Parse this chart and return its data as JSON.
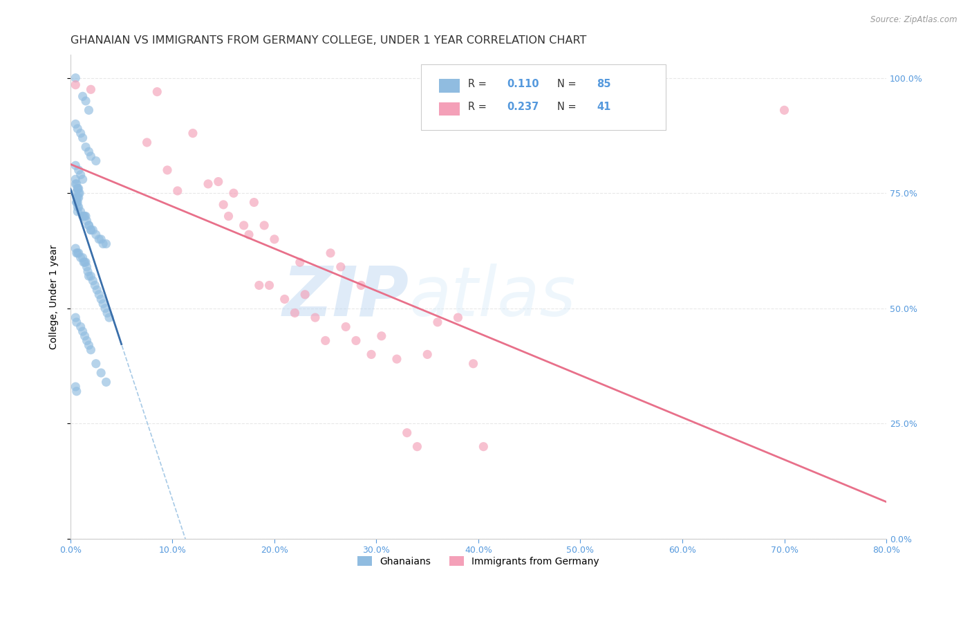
{
  "title": "GHANAIAN VS IMMIGRANTS FROM GERMANY COLLEGE, UNDER 1 YEAR CORRELATION CHART",
  "source": "Source: ZipAtlas.com",
  "xlabel_range": [
    0.0,
    0.8
  ],
  "ylabel_range": [
    0.0,
    1.05
  ],
  "ylabel_label": "College, Under 1 year",
  "watermark_zip": "ZIP",
  "watermark_atlas": "atlas",
  "ghanaian_color": "#90bce0",
  "germany_color": "#f4a0b8",
  "ghanaian_line_color": "#3a6faa",
  "ghanaian_line_dash_color": "#90bce0",
  "germany_line_color": "#e8708a",
  "background_color": "#ffffff",
  "grid_color": "#e8e8e8",
  "title_fontsize": 11.5,
  "axis_label_fontsize": 10,
  "tick_fontsize": 9,
  "right_tick_color": "#5599dd",
  "bottom_tick_color": "#5599dd",
  "ghanaian_R": 0.11,
  "ghanaian_N": 85,
  "germany_R": 0.237,
  "germany_N": 41,
  "ghanaian_x": [
    0.005,
    0.012,
    0.015,
    0.018,
    0.005,
    0.007,
    0.01,
    0.012,
    0.015,
    0.018,
    0.02,
    0.025,
    0.005,
    0.008,
    0.01,
    0.012,
    0.005,
    0.005,
    0.006,
    0.007,
    0.007,
    0.008,
    0.008,
    0.009,
    0.005,
    0.006,
    0.007,
    0.008,
    0.006,
    0.007,
    0.006,
    0.007,
    0.008,
    0.007,
    0.01,
    0.012,
    0.013,
    0.014,
    0.015,
    0.016,
    0.018,
    0.018,
    0.02,
    0.02,
    0.022,
    0.025,
    0.028,
    0.03,
    0.032,
    0.035,
    0.005,
    0.006,
    0.007,
    0.008,
    0.01,
    0.012,
    0.013,
    0.014,
    0.015,
    0.016,
    0.017,
    0.018,
    0.02,
    0.022,
    0.024,
    0.026,
    0.028,
    0.03,
    0.032,
    0.034,
    0.036,
    0.038,
    0.005,
    0.006,
    0.01,
    0.012,
    0.014,
    0.016,
    0.018,
    0.02,
    0.025,
    0.03,
    0.035,
    0.005,
    0.006
  ],
  "ghanaian_y": [
    1.0,
    0.96,
    0.95,
    0.93,
    0.9,
    0.89,
    0.88,
    0.87,
    0.85,
    0.84,
    0.83,
    0.82,
    0.81,
    0.8,
    0.79,
    0.78,
    0.78,
    0.77,
    0.77,
    0.76,
    0.76,
    0.76,
    0.75,
    0.75,
    0.75,
    0.74,
    0.74,
    0.74,
    0.73,
    0.73,
    0.73,
    0.72,
    0.72,
    0.71,
    0.71,
    0.7,
    0.7,
    0.7,
    0.7,
    0.69,
    0.68,
    0.68,
    0.67,
    0.67,
    0.67,
    0.66,
    0.65,
    0.65,
    0.64,
    0.64,
    0.63,
    0.62,
    0.62,
    0.62,
    0.61,
    0.61,
    0.6,
    0.6,
    0.6,
    0.59,
    0.58,
    0.57,
    0.57,
    0.56,
    0.55,
    0.54,
    0.53,
    0.52,
    0.51,
    0.5,
    0.49,
    0.48,
    0.48,
    0.47,
    0.46,
    0.45,
    0.44,
    0.43,
    0.42,
    0.41,
    0.38,
    0.36,
    0.34,
    0.33,
    0.32
  ],
  "germany_x": [
    0.005,
    0.02,
    0.075,
    0.085,
    0.095,
    0.105,
    0.12,
    0.135,
    0.145,
    0.15,
    0.155,
    0.16,
    0.17,
    0.175,
    0.18,
    0.185,
    0.19,
    0.195,
    0.2,
    0.21,
    0.22,
    0.225,
    0.23,
    0.24,
    0.25,
    0.255,
    0.265,
    0.27,
    0.28,
    0.285,
    0.295,
    0.305,
    0.32,
    0.33,
    0.34,
    0.35,
    0.36,
    0.38,
    0.395,
    0.405,
    0.7
  ],
  "germany_y": [
    0.985,
    0.975,
    0.86,
    0.97,
    0.8,
    0.755,
    0.88,
    0.77,
    0.775,
    0.725,
    0.7,
    0.75,
    0.68,
    0.66,
    0.73,
    0.55,
    0.68,
    0.55,
    0.65,
    0.52,
    0.49,
    0.6,
    0.53,
    0.48,
    0.43,
    0.62,
    0.59,
    0.46,
    0.43,
    0.55,
    0.4,
    0.44,
    0.39,
    0.23,
    0.2,
    0.4,
    0.47,
    0.48,
    0.38,
    0.2,
    0.93
  ],
  "xtick_vals": [
    0.0,
    0.1,
    0.2,
    0.3,
    0.4,
    0.5,
    0.6,
    0.7,
    0.8
  ],
  "xtick_labels": [
    "0.0%",
    "10.0%",
    "20.0%",
    "30.0%",
    "40.0%",
    "50.0%",
    "60.0%",
    "70.0%",
    "80.0%"
  ],
  "ytick_vals": [
    0.0,
    0.25,
    0.5,
    0.75,
    1.0
  ],
  "ytick_labels": [
    "0.0%",
    "25.0%",
    "50.0%",
    "75.0%",
    "100.0%"
  ]
}
